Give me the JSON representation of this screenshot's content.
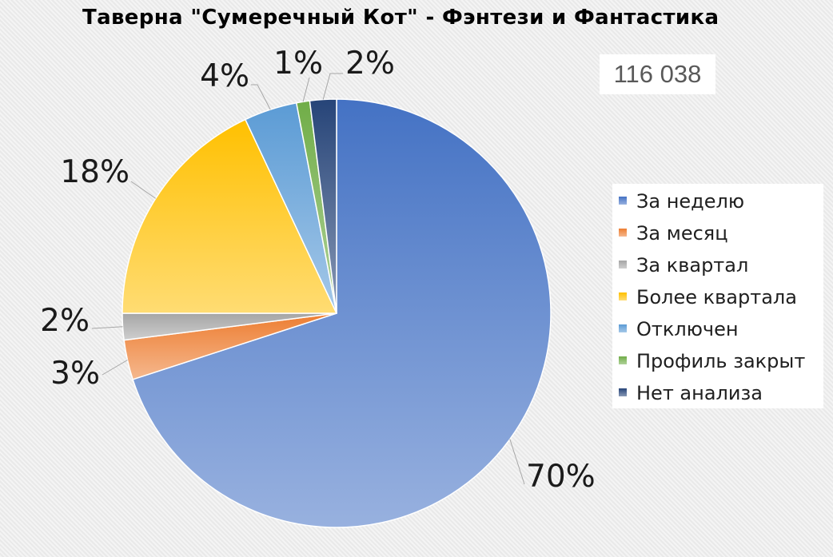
{
  "chart_data": {
    "type": "pie",
    "title": "Таверна \"Сумеречный Кот\" - Фэнтези и Фантастика",
    "categories": [
      "За неделю",
      "За месяц",
      "За квартал",
      "Более квартала",
      "Отключен",
      "Профиль закрыт",
      "Нет анализа"
    ],
    "values": [
      70,
      3,
      2,
      18,
      4,
      1,
      2
    ],
    "data_labels": [
      "70%",
      "3%",
      "2%",
      "18%",
      "4%",
      "1%",
      "2%"
    ],
    "colors": [
      "#4472C4",
      "#ED7D31",
      "#A5A5A5",
      "#FFC000",
      "#5B9BD5",
      "#70AD47",
      "#264478"
    ],
    "legend": "right",
    "annotation": "116 038"
  }
}
